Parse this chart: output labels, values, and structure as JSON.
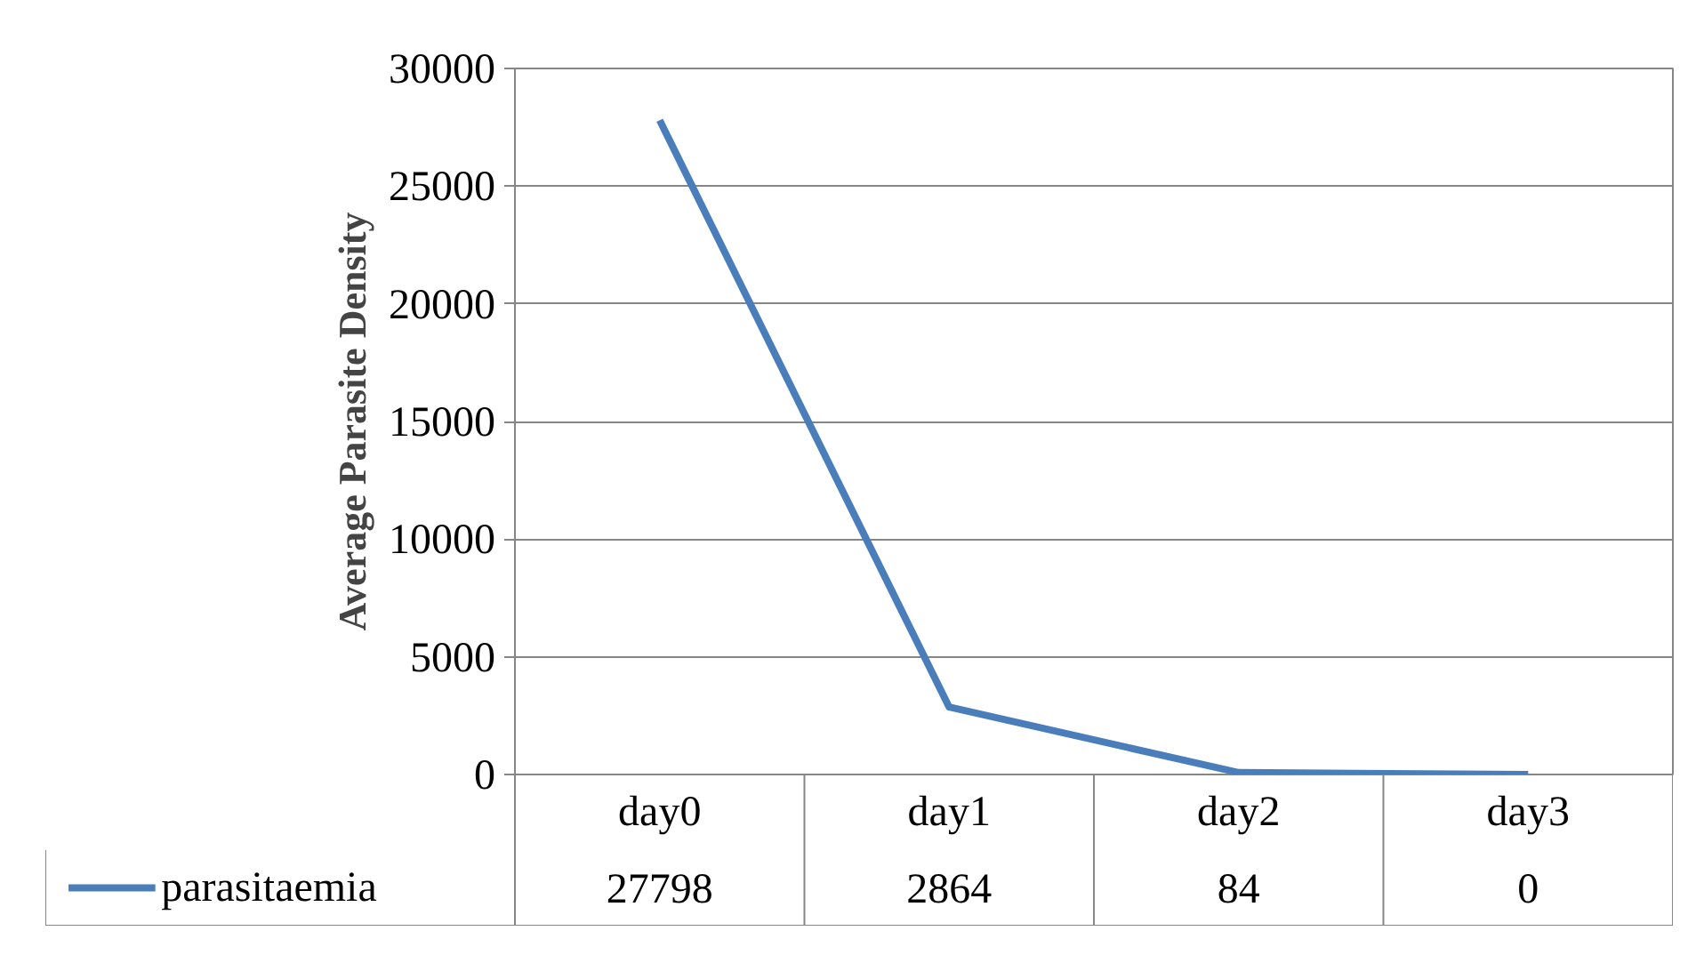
{
  "chart_data": {
    "type": "line",
    "ylabel": "Average Parasite Density",
    "categories": [
      "day0",
      "day1",
      "day2",
      "day3"
    ],
    "series": [
      {
        "name": "parasitaemia",
        "color": "#4a7ebb",
        "values": [
          27798,
          2864,
          84,
          0
        ]
      }
    ],
    "ylim": [
      0,
      30000
    ],
    "yticks": [
      0,
      5000,
      10000,
      15000,
      20000,
      25000,
      30000
    ],
    "grid": "y",
    "legend": "bottom",
    "data_labels": true
  }
}
